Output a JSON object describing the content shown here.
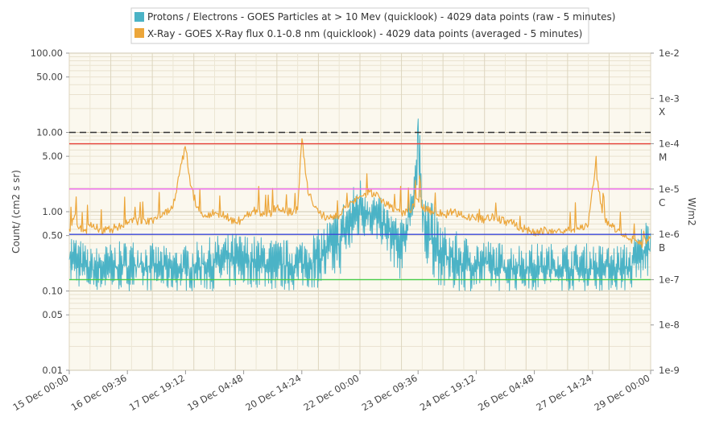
{
  "chart_data": {
    "type": "line",
    "legend_placement": "top-center",
    "series": [
      {
        "name": "Protons / Electrons - GOES Particles at > 10 Mev (quicklook) - 4029 data points (raw - 5 minutes)",
        "color": "#4bb3c6",
        "axis": "left",
        "envelope": [
          [
            "15 Dec 00:00",
            0.12,
            0.6
          ],
          [
            "15 Dec 12:00",
            0.1,
            0.35
          ],
          [
            "16 Dec 00:00",
            0.1,
            0.4
          ],
          [
            "16 Dec 12:00",
            0.1,
            0.45
          ],
          [
            "17 Dec 00:00",
            0.1,
            0.4
          ],
          [
            "17 Dec 12:00",
            0.1,
            0.35
          ],
          [
            "18 Dec 00:00",
            0.1,
            0.4
          ],
          [
            "18 Dec 12:00",
            0.1,
            0.5
          ],
          [
            "19 Dec 00:00",
            0.11,
            0.55
          ],
          [
            "19 Dec 12:00",
            0.11,
            0.5
          ],
          [
            "20 Dec 00:00",
            0.1,
            0.45
          ],
          [
            "20 Dec 12:00",
            0.1,
            0.45
          ],
          [
            "21 Dec 00:00",
            0.11,
            0.6
          ],
          [
            "21 Dec 12:00",
            0.15,
            1.2
          ],
          [
            "22 Dec 00:00",
            0.5,
            2.8
          ],
          [
            "22 Dec 12:00",
            0.4,
            1.5
          ],
          [
            "23 Dec 00:00",
            0.13,
            0.8
          ],
          [
            "23 Dec 06:00",
            0.7,
            2.5
          ],
          [
            "23 Dec 09:36",
            1.0,
            15.0
          ],
          [
            "23 Dec 14:00",
            0.2,
            2.0
          ],
          [
            "24 Dec 00:00",
            0.1,
            0.7
          ],
          [
            "24 Dec 12:00",
            0.1,
            0.5
          ],
          [
            "25 Dec 00:00",
            0.1,
            0.45
          ],
          [
            "25 Dec 12:00",
            0.1,
            0.4
          ],
          [
            "26 Dec 00:00",
            0.1,
            0.4
          ],
          [
            "26 Dec 12:00",
            0.1,
            0.4
          ],
          [
            "27 Dec 00:00",
            0.1,
            0.4
          ],
          [
            "27 Dec 12:00",
            0.1,
            0.4
          ],
          [
            "28 Dec 00:00",
            0.1,
            0.38
          ],
          [
            "28 Dec 12:00",
            0.1,
            0.4
          ],
          [
            "29 Dec 00:00",
            0.15,
            1.0
          ]
        ]
      },
      {
        "name": "X-Ray - GOES X-Ray flux 0.1-0.8 nm (quicklook) - 4029 data points (averaged - 5 minutes)",
        "color": "#eca63a",
        "axis": "right",
        "points": [
          [
            "15 Dec 00:00",
            1.3e-06
          ],
          [
            "15 Dec 03:00",
            2.5e-06
          ],
          [
            "15 Dec 06:00",
            1.4e-06
          ],
          [
            "15 Dec 09:00",
            1.2e-06
          ],
          [
            "15 Dec 12:00",
            1.5e-06
          ],
          [
            "15 Dec 18:00",
            1.3e-06
          ],
          [
            "16 Dec 00:00",
            1.3e-06
          ],
          [
            "16 Dec 06:00",
            1.6e-06
          ],
          [
            "16 Dec 12:00",
            2.2e-06
          ],
          [
            "16 Dec 18:00",
            1.8e-06
          ],
          [
            "17 Dec 00:00",
            2e-06
          ],
          [
            "17 Dec 06:00",
            3e-06
          ],
          [
            "17 Dec 12:00",
            4e-06
          ],
          [
            "17 Dec 19:12",
            9.5e-05
          ],
          [
            "17 Dec 22:00",
            1.2e-05
          ],
          [
            "18 Dec 02:00",
            4e-06
          ],
          [
            "18 Dec 06:00",
            2.5e-06
          ],
          [
            "18 Dec 12:00",
            3e-06
          ],
          [
            "18 Dec 18:00",
            2.5e-06
          ],
          [
            "19 Dec 00:00",
            1.8e-06
          ],
          [
            "19 Dec 06:00",
            2.5e-06
          ],
          [
            "19 Dec 12:00",
            3.5e-06
          ],
          [
            "19 Dec 18:00",
            2.5e-06
          ],
          [
            "20 Dec 00:00",
            4e-06
          ],
          [
            "20 Dec 06:00",
            3e-06
          ],
          [
            "20 Dec 12:00",
            3.5e-06
          ],
          [
            "20 Dec 14:24",
            0.00014
          ],
          [
            "20 Dec 18:00",
            8e-06
          ],
          [
            "21 Dec 00:00",
            3e-06
          ],
          [
            "21 Dec 06:00",
            2.2e-06
          ],
          [
            "21 Dec 12:00",
            2.5e-06
          ],
          [
            "21 Dec 18:00",
            5e-06
          ],
          [
            "22 Dec 00:00",
            7e-06
          ],
          [
            "22 Dec 06:00",
            9e-06
          ],
          [
            "22 Dec 12:00",
            6e-06
          ],
          [
            "22 Dec 18:00",
            4e-06
          ],
          [
            "23 Dec 00:00",
            3e-06
          ],
          [
            "23 Dec 06:00",
            3.5e-06
          ],
          [
            "23 Dec 09:36",
            6e-06
          ],
          [
            "23 Dec 12:00",
            4e-06
          ],
          [
            "23 Dec 18:00",
            3e-06
          ],
          [
            "24 Dec 00:00",
            2.8e-06
          ],
          [
            "24 Dec 06:00",
            3e-06
          ],
          [
            "24 Dec 12:00",
            2.6e-06
          ],
          [
            "24 Dec 18:00",
            2.4e-06
          ],
          [
            "25 Dec 00:00",
            2.2e-06
          ],
          [
            "25 Dec 06:00",
            2.4e-06
          ],
          [
            "25 Dec 12:00",
            2e-06
          ],
          [
            "25 Dec 18:00",
            1.6e-06
          ],
          [
            "26 Dec 00:00",
            1.3e-06
          ],
          [
            "26 Dec 06:00",
            1.1e-06
          ],
          [
            "26 Dec 12:00",
            1.2e-06
          ],
          [
            "26 Dec 18:00",
            1.2e-06
          ],
          [
            "27 Dec 00:00",
            1.3e-06
          ],
          [
            "27 Dec 06:00",
            1.4e-06
          ],
          [
            "27 Dec 12:00",
            1.6e-06
          ],
          [
            "27 Dec 16:00",
            3e-05
          ],
          [
            "27 Dec 20:00",
            3e-06
          ],
          [
            "28 Dec 00:00",
            1.6e-06
          ],
          [
            "28 Dec 06:00",
            1.2e-06
          ],
          [
            "28 Dec 12:00",
            8e-07
          ],
          [
            "28 Dec 18:00",
            6e-07
          ],
          [
            "29 Dec 00:00",
            9e-07
          ]
        ]
      }
    ],
    "x_axis": {
      "type": "datetime",
      "range": [
        "15 Dec 00:00",
        "29 Dec 00:00"
      ],
      "tick_labels": [
        "15 Dec 00:00",
        "16 Dec 09:36",
        "17 Dec 19:12",
        "19 Dec 04:48",
        "20 Dec 14:24",
        "22 Dec 00:00",
        "23 Dec 09:36",
        "24 Dec 19:12",
        "26 Dec 04:48",
        "27 Dec 14:24",
        "29 Dec 00:00"
      ],
      "label": ""
    },
    "y_axis_left": {
      "label": "Count/ (cm2 s sr)",
      "scale": "log",
      "range": [
        0.01,
        100
      ],
      "tick_values": [
        100,
        50,
        10,
        5,
        1,
        0.5,
        0.1,
        0.05,
        0.01
      ],
      "tick_labels": [
        "100.00",
        "50.00",
        "10.00",
        "5.00",
        "1.00",
        "0.50",
        "0.10",
        "0.05",
        "0.01"
      ]
    },
    "y_axis_right": {
      "label": "W/m2",
      "scale": "log",
      "range": [
        1e-09,
        0.01
      ],
      "tick_values": [
        0.01,
        0.001,
        0.0001,
        1e-05,
        1e-06,
        1e-07,
        1e-08,
        1e-09
      ],
      "tick_labels": [
        "1e-2",
        "1e-3",
        "1e-4",
        "1e-5",
        "1e-6",
        "1e-7",
        "1e-8",
        "1e-9"
      ]
    },
    "flare_classes": [
      {
        "label": "X",
        "value": 0.0005
      },
      {
        "label": "M",
        "value": 5e-05
      },
      {
        "label": "C",
        "value": 5e-06
      },
      {
        "label": "B",
        "value": 5e-07
      }
    ],
    "threshold_lines": [
      {
        "axis": "left",
        "value": 10,
        "color": "#333333",
        "style": "dashed"
      },
      {
        "axis": "right",
        "value": 0.0001,
        "color": "#e8433c",
        "style": "solid"
      },
      {
        "axis": "right",
        "value": 1e-05,
        "color": "#ee66ee",
        "style": "solid"
      },
      {
        "axis": "right",
        "value": 1e-06,
        "color": "#3a48d8",
        "style": "solid"
      },
      {
        "axis": "right",
        "value": 1e-07,
        "color": "#44cc44",
        "style": "solid"
      }
    ],
    "grid": true
  }
}
